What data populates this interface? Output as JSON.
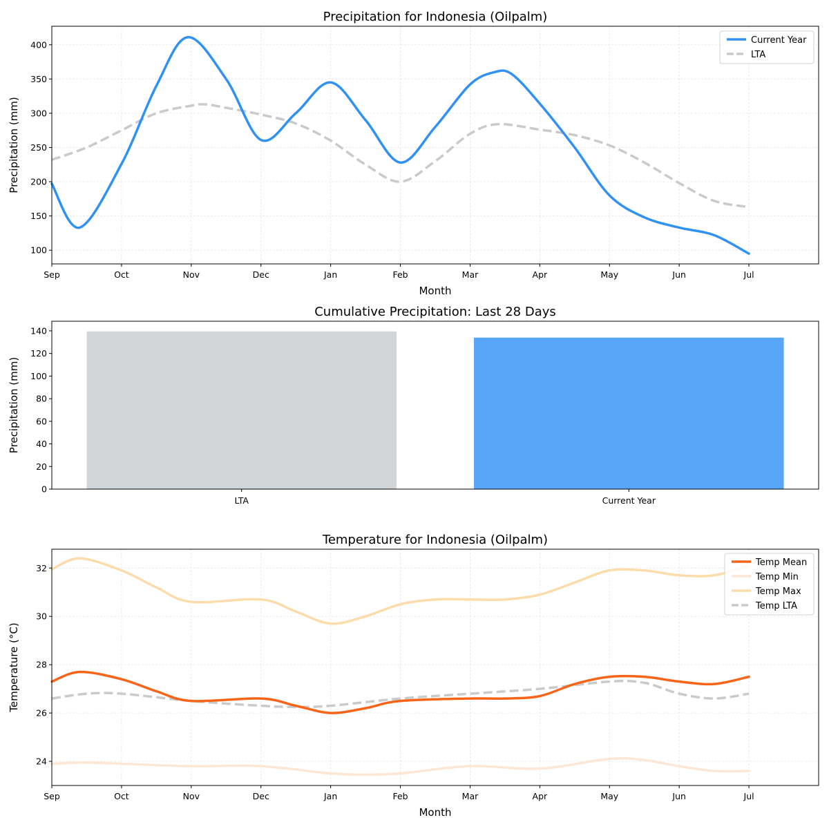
{
  "chart_data": [
    {
      "type": "line",
      "title": "Precipitation for Indonesia (Oilpalm)",
      "xlabel": "Month",
      "ylabel": "Precipitation (mm)",
      "xticks": [
        "Sep",
        "Oct",
        "Nov",
        "Dec",
        "Jan",
        "Feb",
        "Mar",
        "Apr",
        "May",
        "Jun",
        "Jul"
      ],
      "xlim": [
        0,
        11
      ],
      "ylim": [
        80,
        427
      ],
      "yticks": [
        100,
        150,
        200,
        250,
        300,
        350,
        400
      ],
      "grid": true,
      "legend": "top-right",
      "series": [
        {
          "name": "Current Year",
          "color": "#3091f5",
          "dashed": false,
          "x": [
            0,
            0.4,
            1,
            1.5,
            1.95,
            2.5,
            3,
            3.5,
            4,
            4.5,
            5,
            5.5,
            6,
            6.35,
            6.6,
            7,
            7.5,
            8,
            8.5,
            9,
            9.5,
            10
          ],
          "y": [
            197,
            133,
            226,
            340,
            411,
            350,
            261,
            300,
            345,
            290,
            228,
            280,
            342,
            360,
            357,
            314,
            250,
            180,
            148,
            133,
            122,
            95
          ]
        },
        {
          "name": "LTA",
          "color": "#c8cacc",
          "dashed": true,
          "x": [
            0,
            0.5,
            1,
            1.5,
            2,
            2.2,
            2.5,
            3,
            3.5,
            4,
            4.5,
            5,
            5.5,
            6,
            6.4,
            7,
            7.5,
            8,
            8.5,
            9,
            9.5,
            10
          ],
          "y": [
            232,
            250,
            275,
            300,
            311,
            313,
            308,
            298,
            285,
            260,
            225,
            200,
            230,
            270,
            284,
            276,
            268,
            253,
            228,
            198,
            172,
            163
          ]
        }
      ]
    },
    {
      "type": "bar",
      "title": "Cumulative Precipitation: Last 28 Days",
      "xlabel": "",
      "ylabel": "Precipitation (mm)",
      "categories": [
        "LTA",
        "Current Year"
      ],
      "values": [
        139.5,
        134
      ],
      "colors": [
        "#d1d5d8",
        "#58a6fa"
      ],
      "xlim": [
        -0.49,
        1.49
      ],
      "ylim": [
        0,
        148.5
      ],
      "yticks": [
        0,
        20,
        40,
        60,
        80,
        100,
        120,
        140
      ]
    },
    {
      "type": "line",
      "title": "Temperature for Indonesia (Oilpalm)",
      "xlabel": "Month",
      "ylabel": "Temperature (°C)",
      "xticks": [
        "Sep",
        "Oct",
        "Nov",
        "Dec",
        "Jan",
        "Feb",
        "Mar",
        "Apr",
        "May",
        "Jun",
        "Jul"
      ],
      "xlim": [
        0,
        11
      ],
      "ylim": [
        23.0,
        32.78
      ],
      "yticks": [
        24,
        26,
        28,
        30,
        32
      ],
      "grid": true,
      "legend": "top-right",
      "series": [
        {
          "name": "Temp Mean",
          "color": "#fa6418",
          "dashed": false,
          "x": [
            0,
            0.4,
            1,
            1.5,
            2,
            3,
            3.5,
            4,
            4.5,
            5,
            6,
            6.5,
            7,
            7.5,
            8,
            8.5,
            9,
            9.5,
            10
          ],
          "y": [
            27.3,
            27.7,
            27.4,
            26.9,
            26.5,
            26.6,
            26.3,
            26.0,
            26.2,
            26.5,
            26.6,
            26.6,
            26.7,
            27.2,
            27.5,
            27.5,
            27.3,
            27.2,
            27.5
          ]
        },
        {
          "name": "Temp Min",
          "color": "#fde6d3",
          "dashed": false,
          "x": [
            0,
            0.5,
            1,
            2,
            3,
            4,
            4.5,
            5,
            6,
            7,
            8,
            8.5,
            9,
            9.5,
            10
          ],
          "y": [
            23.9,
            23.95,
            23.9,
            23.8,
            23.8,
            23.5,
            23.45,
            23.5,
            23.8,
            23.7,
            24.1,
            24.05,
            23.8,
            23.6,
            23.6
          ]
        },
        {
          "name": "Temp Max",
          "color": "#fcdcaa",
          "dashed": false,
          "x": [
            0,
            0.4,
            1,
            1.5,
            2,
            3,
            3.5,
            4,
            4.5,
            5,
            5.5,
            6,
            6.5,
            7,
            7.5,
            8,
            8.5,
            9,
            9.5,
            10
          ],
          "y": [
            31.95,
            32.4,
            31.9,
            31.2,
            30.6,
            30.7,
            30.2,
            29.7,
            30.0,
            30.5,
            30.7,
            30.7,
            30.7,
            30.9,
            31.4,
            31.9,
            31.9,
            31.7,
            31.7,
            32.1
          ]
        },
        {
          "name": "Temp LTA",
          "color": "#c8cacc",
          "dashed": true,
          "x": [
            0,
            0.5,
            1,
            2,
            3,
            3.5,
            4,
            5,
            6,
            7,
            8,
            8.5,
            9,
            9.5,
            10
          ],
          "y": [
            26.6,
            26.8,
            26.8,
            26.5,
            26.3,
            26.25,
            26.3,
            26.6,
            26.8,
            27.0,
            27.3,
            27.25,
            26.8,
            26.6,
            26.8
          ]
        }
      ]
    }
  ]
}
